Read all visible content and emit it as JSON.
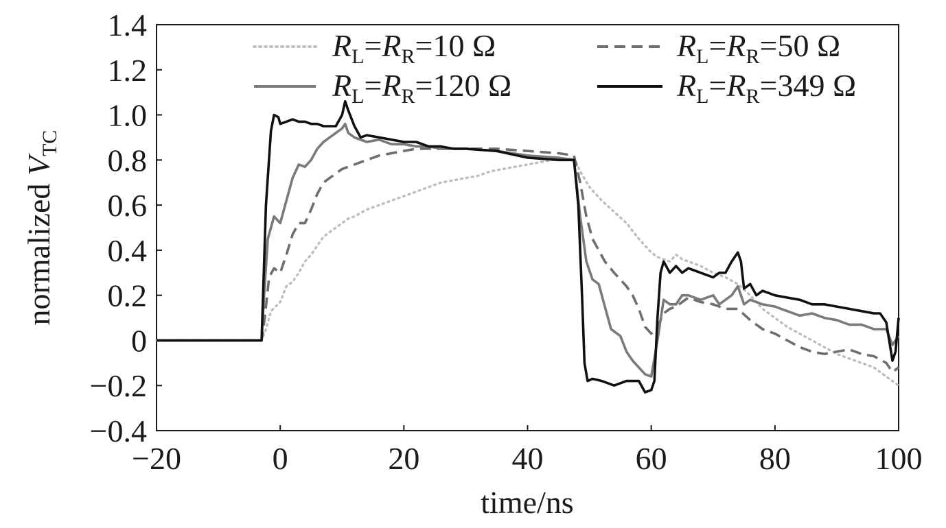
{
  "chart_data": {
    "type": "line",
    "xlabel": "time/ns",
    "ylabel": {
      "prefix": "normalized ",
      "var": "V",
      "sub": "TC"
    },
    "xlim": [
      -20,
      100
    ],
    "ylim": [
      -0.4,
      1.4
    ],
    "xticks": [
      "−20",
      "0",
      "20",
      "40",
      "60",
      "80",
      "100"
    ],
    "xtick_values": [
      -20,
      0,
      20,
      40,
      60,
      80,
      100
    ],
    "yticks": [
      "−0.4",
      "−0.2",
      "0",
      "0.2",
      "0.4",
      "0.6",
      "0.8",
      "1.0",
      "1.2",
      "1.4"
    ],
    "ytick_values": [
      -0.4,
      -0.2,
      0,
      0.2,
      0.4,
      0.6,
      0.8,
      1.0,
      1.2,
      1.4
    ],
    "grid": false,
    "legend_position": "top",
    "series": [
      {
        "name": "RL=RR=10 Ω",
        "legend": {
          "v": "10 Ω"
        },
        "color": "#bdbdbd",
        "style": "dotted",
        "points": [
          [
            -20,
            0
          ],
          [
            -3,
            0
          ],
          [
            -2.3,
            0.05
          ],
          [
            -1.5,
            0.13
          ],
          [
            0,
            0.17
          ],
          [
            1,
            0.24
          ],
          [
            2,
            0.26
          ],
          [
            3,
            0.3
          ],
          [
            4,
            0.35
          ],
          [
            5,
            0.38
          ],
          [
            6,
            0.42
          ],
          [
            7,
            0.46
          ],
          [
            8,
            0.48
          ],
          [
            9,
            0.5
          ],
          [
            10,
            0.52
          ],
          [
            11,
            0.54
          ],
          [
            12,
            0.55
          ],
          [
            14,
            0.58
          ],
          [
            16,
            0.6
          ],
          [
            18,
            0.62
          ],
          [
            20,
            0.64
          ],
          [
            22,
            0.66
          ],
          [
            24,
            0.68
          ],
          [
            26,
            0.7
          ],
          [
            28,
            0.71
          ],
          [
            30,
            0.72
          ],
          [
            32,
            0.73
          ],
          [
            34,
            0.75
          ],
          [
            36,
            0.76
          ],
          [
            38,
            0.77
          ],
          [
            40,
            0.78
          ],
          [
            42,
            0.79
          ],
          [
            44,
            0.8
          ],
          [
            46,
            0.8
          ],
          [
            47.5,
            0.81
          ],
          [
            48.5,
            0.75
          ],
          [
            50,
            0.68
          ],
          [
            52,
            0.62
          ],
          [
            54,
            0.57
          ],
          [
            56,
            0.52
          ],
          [
            58,
            0.45
          ],
          [
            60,
            0.39
          ],
          [
            61,
            0.37
          ],
          [
            62,
            0.36
          ],
          [
            63,
            0.35
          ],
          [
            64,
            0.38
          ],
          [
            65,
            0.36
          ],
          [
            66,
            0.35
          ],
          [
            68,
            0.33
          ],
          [
            70,
            0.3
          ],
          [
            72,
            0.28
          ],
          [
            74,
            0.25
          ],
          [
            76,
            0.2
          ],
          [
            78,
            0.14
          ],
          [
            80,
            0.1
          ],
          [
            82,
            0.06
          ],
          [
            84,
            0.03
          ],
          [
            86,
            0.0
          ],
          [
            88,
            -0.03
          ],
          [
            90,
            -0.06
          ],
          [
            92,
            -0.08
          ],
          [
            94,
            -0.1
          ],
          [
            96,
            -0.12
          ],
          [
            98,
            -0.16
          ],
          [
            100,
            -0.2
          ]
        ]
      },
      {
        "name": "RL=RR=50 Ω",
        "legend": {
          "v": "50 Ω"
        },
        "color": "#6e6e6e",
        "style": "dashed",
        "points": [
          [
            -20,
            0
          ],
          [
            -3,
            0
          ],
          [
            -2.5,
            0.1
          ],
          [
            -1.8,
            0.28
          ],
          [
            -1,
            0.32
          ],
          [
            0,
            0.3
          ],
          [
            1,
            0.38
          ],
          [
            2,
            0.47
          ],
          [
            3,
            0.52
          ],
          [
            4,
            0.52
          ],
          [
            5,
            0.58
          ],
          [
            6,
            0.65
          ],
          [
            7,
            0.7
          ],
          [
            8,
            0.72
          ],
          [
            9,
            0.74
          ],
          [
            10,
            0.76
          ],
          [
            12,
            0.78
          ],
          [
            14,
            0.8
          ],
          [
            16,
            0.82
          ],
          [
            18,
            0.83
          ],
          [
            20,
            0.84
          ],
          [
            22,
            0.85
          ],
          [
            24,
            0.85
          ],
          [
            26,
            0.85
          ],
          [
            28,
            0.85
          ],
          [
            30,
            0.85
          ],
          [
            35,
            0.85
          ],
          [
            40,
            0.84
          ],
          [
            45,
            0.83
          ],
          [
            47.5,
            0.82
          ],
          [
            48.5,
            0.7
          ],
          [
            49.5,
            0.55
          ],
          [
            50.5,
            0.45
          ],
          [
            51.5,
            0.4
          ],
          [
            52.5,
            0.35
          ],
          [
            54,
            0.3
          ],
          [
            56,
            0.24
          ],
          [
            57,
            0.2
          ],
          [
            58,
            0.14
          ],
          [
            59,
            0.06
          ],
          [
            60,
            0.03
          ],
          [
            61,
            0.06
          ],
          [
            62,
            0.12
          ],
          [
            63,
            0.14
          ],
          [
            64,
            0.15
          ],
          [
            65,
            0.17
          ],
          [
            66,
            0.19
          ],
          [
            68,
            0.17
          ],
          [
            70,
            0.16
          ],
          [
            72,
            0.14
          ],
          [
            74,
            0.14
          ],
          [
            76,
            0.09
          ],
          [
            78,
            0.05
          ],
          [
            80,
            0.03
          ],
          [
            82,
            0.0
          ],
          [
            84,
            -0.03
          ],
          [
            86,
            -0.05
          ],
          [
            88,
            -0.06
          ],
          [
            90,
            -0.05
          ],
          [
            92,
            -0.04
          ],
          [
            94,
            -0.06
          ],
          [
            96,
            -0.07
          ],
          [
            98,
            -0.1
          ],
          [
            99,
            -0.14
          ],
          [
            100,
            -0.12
          ]
        ]
      },
      {
        "name": "RL=RR=120 Ω",
        "legend": {
          "v": "120 Ω"
        },
        "color": "#7a7a7a",
        "style": "solid",
        "points": [
          [
            -20,
            0
          ],
          [
            -3,
            0
          ],
          [
            -2.6,
            0.2
          ],
          [
            -2,
            0.45
          ],
          [
            -1,
            0.55
          ],
          [
            0,
            0.52
          ],
          [
            1,
            0.62
          ],
          [
            2,
            0.72
          ],
          [
            3,
            0.78
          ],
          [
            4,
            0.77
          ],
          [
            5,
            0.8
          ],
          [
            6,
            0.85
          ],
          [
            7,
            0.88
          ],
          [
            8,
            0.9
          ],
          [
            9,
            0.92
          ],
          [
            10,
            0.94
          ],
          [
            10.5,
            0.96
          ],
          [
            11,
            0.92
          ],
          [
            12,
            0.9
          ],
          [
            14,
            0.88
          ],
          [
            16,
            0.89
          ],
          [
            18,
            0.87
          ],
          [
            20,
            0.87
          ],
          [
            22,
            0.86
          ],
          [
            24,
            0.86
          ],
          [
            26,
            0.85
          ],
          [
            28,
            0.85
          ],
          [
            30,
            0.85
          ],
          [
            35,
            0.84
          ],
          [
            40,
            0.82
          ],
          [
            45,
            0.81
          ],
          [
            47.5,
            0.8
          ],
          [
            48.5,
            0.55
          ],
          [
            49.5,
            0.35
          ],
          [
            50.5,
            0.27
          ],
          [
            51.5,
            0.25
          ],
          [
            52.5,
            0.15
          ],
          [
            53.5,
            0.05
          ],
          [
            55,
            0.02
          ],
          [
            56,
            -0.05
          ],
          [
            57,
            -0.09
          ],
          [
            58,
            -0.12
          ],
          [
            59,
            -0.15
          ],
          [
            60,
            -0.16
          ],
          [
            61,
            0.0
          ],
          [
            62,
            0.18
          ],
          [
            63,
            0.16
          ],
          [
            64,
            0.16
          ],
          [
            65,
            0.2
          ],
          [
            66,
            0.2
          ],
          [
            68,
            0.18
          ],
          [
            70,
            0.2
          ],
          [
            71,
            0.16
          ],
          [
            72,
            0.18
          ],
          [
            73,
            0.2
          ],
          [
            74,
            0.24
          ],
          [
            75,
            0.16
          ],
          [
            76,
            0.18
          ],
          [
            78,
            0.16
          ],
          [
            80,
            0.15
          ],
          [
            82,
            0.13
          ],
          [
            84,
            0.11
          ],
          [
            86,
            0.12
          ],
          [
            88,
            0.1
          ],
          [
            90,
            0.09
          ],
          [
            92,
            0.07
          ],
          [
            94,
            0.07
          ],
          [
            96,
            0.05
          ],
          [
            98,
            0.05
          ],
          [
            99,
            -0.02
          ],
          [
            100,
            0.02
          ]
        ]
      },
      {
        "name": "RL=RR=349 Ω",
        "legend": {
          "v": "349 Ω"
        },
        "color": "#111111",
        "style": "solid",
        "points": [
          [
            -20,
            0
          ],
          [
            -3,
            0
          ],
          [
            -2.3,
            0.6
          ],
          [
            -1.5,
            0.93
          ],
          [
            -1,
            1.0
          ],
          [
            -0.3,
            0.99
          ],
          [
            0,
            0.96
          ],
          [
            1,
            0.97
          ],
          [
            2,
            0.98
          ],
          [
            3,
            0.97
          ],
          [
            4,
            0.97
          ],
          [
            5,
            0.96
          ],
          [
            6,
            0.96
          ],
          [
            7,
            0.95
          ],
          [
            8,
            0.95
          ],
          [
            9,
            0.95
          ],
          [
            10,
            1.0
          ],
          [
            10.5,
            1.06
          ],
          [
            11,
            1.02
          ],
          [
            12,
            0.95
          ],
          [
            13,
            0.9
          ],
          [
            14,
            0.91
          ],
          [
            16,
            0.9
          ],
          [
            18,
            0.89
          ],
          [
            20,
            0.88
          ],
          [
            22,
            0.88
          ],
          [
            24,
            0.86
          ],
          [
            26,
            0.86
          ],
          [
            28,
            0.85
          ],
          [
            30,
            0.85
          ],
          [
            35,
            0.84
          ],
          [
            40,
            0.81
          ],
          [
            45,
            0.8
          ],
          [
            47.5,
            0.8
          ],
          [
            48.2,
            0.6
          ],
          [
            48.8,
            0.2
          ],
          [
            49.2,
            -0.1
          ],
          [
            49.7,
            -0.18
          ],
          [
            50.5,
            -0.17
          ],
          [
            52,
            -0.18
          ],
          [
            54,
            -0.2
          ],
          [
            56,
            -0.18
          ],
          [
            58,
            -0.18
          ],
          [
            59,
            -0.23
          ],
          [
            60,
            -0.22
          ],
          [
            60.5,
            -0.18
          ],
          [
            61,
            0.1
          ],
          [
            61.5,
            0.3
          ],
          [
            62,
            0.35
          ],
          [
            63,
            0.3
          ],
          [
            64,
            0.33
          ],
          [
            65,
            0.3
          ],
          [
            66,
            0.32
          ],
          [
            68,
            0.3
          ],
          [
            70,
            0.28
          ],
          [
            71,
            0.3
          ],
          [
            72,
            0.3
          ],
          [
            73,
            0.35
          ],
          [
            74,
            0.39
          ],
          [
            74.5,
            0.35
          ],
          [
            75,
            0.23
          ],
          [
            76,
            0.25
          ],
          [
            77,
            0.2
          ],
          [
            78,
            0.22
          ],
          [
            80,
            0.2
          ],
          [
            82,
            0.19
          ],
          [
            84,
            0.18
          ],
          [
            86,
            0.16
          ],
          [
            88,
            0.16
          ],
          [
            90,
            0.15
          ],
          [
            92,
            0.14
          ],
          [
            94,
            0.13
          ],
          [
            96,
            0.12
          ],
          [
            97,
            0.12
          ],
          [
            98,
            0.08
          ],
          [
            99,
            -0.09
          ],
          [
            99.5,
            -0.05
          ],
          [
            100,
            0.1
          ]
        ]
      }
    ]
  }
}
